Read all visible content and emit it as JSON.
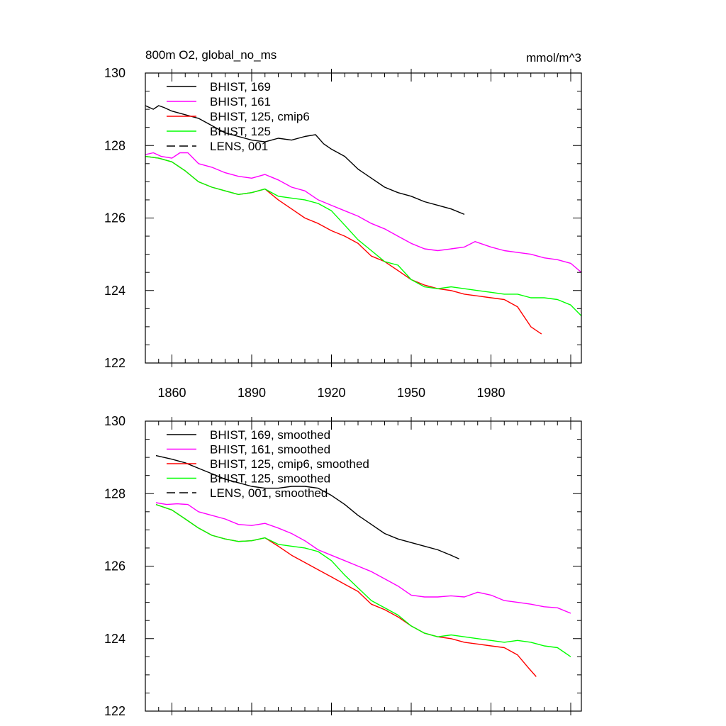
{
  "chart_data": [
    {
      "type": "line",
      "title": "800m O2, global_no_ms",
      "units": "mmol/m^3",
      "xlim": [
        1850,
        2014
      ],
      "ylim": [
        122,
        130
      ],
      "x_ticks": [
        1860,
        1890,
        1920,
        1950,
        1980
      ],
      "x_tick_labels": [
        "1860",
        "1890",
        "1920",
        "1950",
        "1980"
      ],
      "y_ticks": [
        122,
        124,
        126,
        128,
        130
      ],
      "y_tick_labels": [
        "122",
        "124",
        "126",
        "128",
        "130"
      ],
      "legend_position": "top-left",
      "series": [
        {
          "name": "BHIST, 169",
          "color": "#000000",
          "dash": "solid",
          "x": [
            1850,
            1853,
            1855,
            1857,
            1860,
            1865,
            1870,
            1875,
            1880,
            1885,
            1890,
            1895,
            1900,
            1905,
            1910,
            1914,
            1917,
            1920,
            1925,
            1930,
            1935,
            1940,
            1945,
            1950,
            1955,
            1960,
            1965,
            1970
          ],
          "y": [
            129.1,
            129.0,
            129.1,
            129.05,
            128.95,
            128.85,
            128.75,
            128.55,
            128.35,
            128.25,
            128.15,
            128.1,
            128.2,
            128.15,
            128.25,
            128.3,
            128.05,
            127.9,
            127.7,
            127.35,
            127.1,
            126.85,
            126.7,
            126.6,
            126.45,
            126.35,
            126.25,
            126.1
          ]
        },
        {
          "name": "BHIST, 161",
          "color": "#ff00ff",
          "dash": "solid",
          "x": [
            1850,
            1853,
            1856,
            1860,
            1863,
            1866,
            1870,
            1875,
            1880,
            1885,
            1890,
            1895,
            1900,
            1905,
            1910,
            1915,
            1920,
            1925,
            1930,
            1935,
            1940,
            1945,
            1950,
            1955,
            1960,
            1965,
            1970,
            1974,
            1976,
            1980,
            1985,
            1990,
            1995,
            2000,
            2005,
            2010,
            2014
          ],
          "y": [
            127.75,
            127.8,
            127.7,
            127.65,
            127.8,
            127.8,
            127.5,
            127.4,
            127.25,
            127.15,
            127.1,
            127.2,
            127.05,
            126.85,
            126.75,
            126.5,
            126.35,
            126.2,
            126.05,
            125.85,
            125.7,
            125.5,
            125.3,
            125.15,
            125.1,
            125.15,
            125.2,
            125.35,
            125.3,
            125.2,
            125.1,
            125.05,
            125.0,
            124.9,
            124.85,
            124.75,
            124.5
          ]
        },
        {
          "name": "BHIST, 125, cmip6",
          "color": "#ff0000",
          "dash": "solid",
          "x": [
            1850,
            1855,
            1860,
            1865,
            1870,
            1875,
            1880,
            1885,
            1890,
            1895,
            1900,
            1905,
            1910,
            1915,
            1920,
            1925,
            1930,
            1935,
            1940,
            1945,
            1950,
            1955,
            1960,
            1965,
            1970,
            1975,
            1980,
            1985,
            1990,
            1995,
            1999
          ],
          "y": [
            127.7,
            127.65,
            127.55,
            127.3,
            127.0,
            126.85,
            126.75,
            126.65,
            126.7,
            126.8,
            126.5,
            126.25,
            126.0,
            125.85,
            125.65,
            125.5,
            125.3,
            124.95,
            124.8,
            124.55,
            124.3,
            124.15,
            124.05,
            124.0,
            123.9,
            123.85,
            123.8,
            123.75,
            123.55,
            123.0,
            122.8
          ]
        },
        {
          "name": "BHIST, 125",
          "color": "#00ff00",
          "dash": "solid",
          "x": [
            1850,
            1855,
            1860,
            1865,
            1870,
            1875,
            1880,
            1885,
            1890,
            1895,
            1900,
            1905,
            1910,
            1915,
            1920,
            1925,
            1930,
            1935,
            1940,
            1945,
            1950,
            1955,
            1960,
            1965,
            1970,
            1975,
            1980,
            1985,
            1990,
            1995,
            2000,
            2005,
            2010,
            2014
          ],
          "y": [
            127.7,
            127.65,
            127.55,
            127.3,
            127.0,
            126.85,
            126.75,
            126.65,
            126.7,
            126.8,
            126.6,
            126.55,
            126.5,
            126.4,
            126.2,
            125.8,
            125.4,
            125.1,
            124.8,
            124.7,
            124.3,
            124.1,
            124.05,
            124.1,
            124.05,
            124.0,
            123.95,
            123.9,
            123.9,
            123.8,
            123.8,
            123.75,
            123.6,
            123.3
          ]
        },
        {
          "name": "LENS, 001",
          "color": "#000000",
          "dash": "dashed",
          "x": [],
          "y": []
        }
      ]
    },
    {
      "type": "line",
      "xlim": [
        1850,
        2014
      ],
      "ylim": [
        122,
        130
      ],
      "x_ticks": [
        1860,
        1890,
        1920,
        1950,
        1980
      ],
      "y_ticks": [
        122,
        124,
        126,
        128,
        130
      ],
      "y_tick_labels": [
        "122",
        "124",
        "126",
        "128",
        "130"
      ],
      "legend_position": "top-left",
      "series": [
        {
          "name": "BHIST, 169, smoothed",
          "color": "#000000",
          "dash": "solid",
          "x": [
            1854,
            1860,
            1865,
            1870,
            1875,
            1880,
            1885,
            1890,
            1895,
            1900,
            1905,
            1910,
            1915,
            1920,
            1925,
            1930,
            1935,
            1940,
            1945,
            1950,
            1955,
            1960,
            1965,
            1968
          ],
          "y": [
            129.05,
            128.95,
            128.85,
            128.7,
            128.55,
            128.4,
            128.3,
            128.2,
            128.15,
            128.15,
            128.2,
            128.2,
            128.15,
            127.95,
            127.7,
            127.4,
            127.15,
            126.9,
            126.75,
            126.65,
            126.55,
            126.45,
            126.3,
            126.2
          ]
        },
        {
          "name": "BHIST, 161, smoothed",
          "color": "#ff00ff",
          "dash": "solid",
          "x": [
            1854,
            1858,
            1862,
            1866,
            1870,
            1875,
            1880,
            1885,
            1890,
            1895,
            1900,
            1905,
            1910,
            1915,
            1920,
            1925,
            1930,
            1935,
            1940,
            1945,
            1950,
            1955,
            1960,
            1965,
            1970,
            1975,
            1980,
            1985,
            1990,
            1995,
            2000,
            2005,
            2010
          ],
          "y": [
            127.75,
            127.7,
            127.72,
            127.7,
            127.5,
            127.4,
            127.3,
            127.15,
            127.12,
            127.18,
            127.05,
            126.9,
            126.7,
            126.45,
            126.3,
            126.15,
            126.0,
            125.85,
            125.65,
            125.45,
            125.2,
            125.15,
            125.15,
            125.18,
            125.15,
            125.28,
            125.2,
            125.05,
            125.0,
            124.95,
            124.88,
            124.85,
            124.7
          ]
        },
        {
          "name": "BHIST, 125, cmip6, smoothed",
          "color": "#ff0000",
          "dash": "solid",
          "x": [
            1854,
            1860,
            1865,
            1870,
            1875,
            1880,
            1885,
            1890,
            1895,
            1900,
            1905,
            1910,
            1915,
            1920,
            1925,
            1930,
            1935,
            1940,
            1945,
            1950,
            1955,
            1960,
            1965,
            1970,
            1975,
            1980,
            1985,
            1990,
            1994,
            1997
          ],
          "y": [
            127.7,
            127.55,
            127.3,
            127.05,
            126.85,
            126.75,
            126.68,
            126.7,
            126.78,
            126.55,
            126.3,
            126.1,
            125.9,
            125.7,
            125.5,
            125.3,
            124.95,
            124.8,
            124.6,
            124.35,
            124.15,
            124.05,
            124.0,
            123.9,
            123.85,
            123.8,
            123.75,
            123.55,
            123.2,
            122.95
          ]
        },
        {
          "name": "BHIST, 125, smoothed",
          "color": "#00ff00",
          "dash": "solid",
          "x": [
            1854,
            1860,
            1865,
            1870,
            1875,
            1880,
            1885,
            1890,
            1895,
            1900,
            1905,
            1910,
            1915,
            1920,
            1925,
            1930,
            1935,
            1940,
            1945,
            1950,
            1955,
            1960,
            1965,
            1970,
            1975,
            1980,
            1985,
            1990,
            1995,
            2000,
            2005,
            2010
          ],
          "y": [
            127.7,
            127.55,
            127.3,
            127.05,
            126.85,
            126.75,
            126.68,
            126.7,
            126.78,
            126.6,
            126.55,
            126.5,
            126.4,
            126.15,
            125.75,
            125.4,
            125.05,
            124.85,
            124.65,
            124.35,
            124.15,
            124.05,
            124.1,
            124.05,
            124.0,
            123.95,
            123.9,
            123.95,
            123.9,
            123.8,
            123.75,
            123.5
          ]
        },
        {
          "name": "LENS, 001, smoothed",
          "color": "#000000",
          "dash": "dashed",
          "x": [],
          "y": []
        }
      ]
    }
  ]
}
